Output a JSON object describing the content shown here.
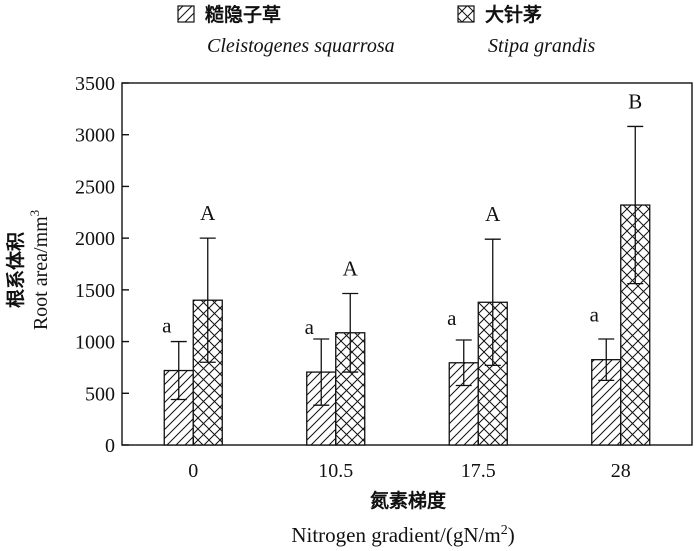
{
  "chart_data": {
    "type": "bar",
    "categories": [
      "0",
      "10.5",
      "17.5",
      "28"
    ],
    "series": [
      {
        "name_cn": "糙隐子草",
        "name": "Cleistogenes squarrosa",
        "pattern": "diagonal-hatch",
        "values": [
          720,
          705,
          795,
          825
        ],
        "errors": [
          280,
          320,
          220,
          200
        ],
        "letters": [
          "a",
          "a",
          "a",
          "a"
        ]
      },
      {
        "name_cn": "大针茅",
        "name": "Stipa grandis",
        "pattern": "cross-hatch",
        "values": [
          1400,
          1085,
          1380,
          2320
        ],
        "errors": [
          600,
          380,
          610,
          760
        ],
        "letters": [
          "A",
          "A",
          "A",
          "B"
        ]
      }
    ],
    "yticks": [
      "0",
      "500",
      "1000",
      "1500",
      "2000",
      "2500",
      "3000",
      "3500"
    ],
    "ylim": [
      0,
      3500
    ],
    "ylabel_cn": "根系体积",
    "ylabel": "Root area/mm",
    "ylabel_sup": "3",
    "xlabel_cn": "氮素梯度",
    "xlabel": "Nitrogen gradient/(gN/m",
    "xlabel_sup": "2",
    "xlabel_end": ")",
    "legend_position": "top"
  }
}
